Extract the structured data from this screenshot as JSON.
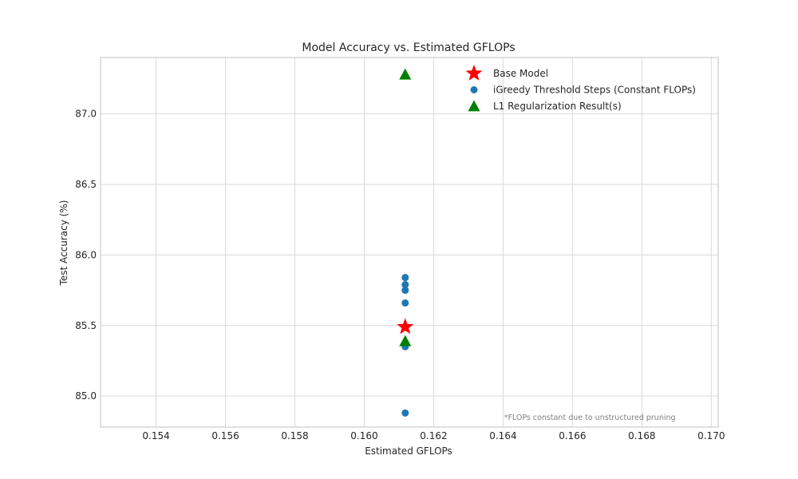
{
  "chart_data": {
    "type": "scatter",
    "title": "Model Accuracy vs. Estimated GFLOPs",
    "xlabel": "Estimated GFLOPs",
    "ylabel": "Test Accuracy (%)",
    "xlim": [
      0.1524,
      0.1702
    ],
    "ylim": [
      84.78,
      87.4
    ],
    "xticks": [
      0.154,
      0.156,
      0.158,
      0.16,
      0.162,
      0.164,
      0.166,
      0.168,
      0.17
    ],
    "xtick_labels": [
      "0.154",
      "0.156",
      "0.158",
      "0.160",
      "0.162",
      "0.164",
      "0.166",
      "0.168",
      "0.170"
    ],
    "yticks": [
      85.0,
      85.5,
      86.0,
      86.5,
      87.0
    ],
    "ytick_labels": [
      "85.0",
      "85.5",
      "86.0",
      "86.5",
      "87.0"
    ],
    "grid": true,
    "legend_position": "top-right",
    "series": [
      {
        "name": "Base Model",
        "marker": "star",
        "color": "#ff0000",
        "points": [
          {
            "x": 0.16118,
            "y": 85.49
          }
        ]
      },
      {
        "name": "iGreedy Threshold Steps (Constant FLOPs)",
        "marker": "circle",
        "color": "#1f77b4",
        "points": [
          {
            "x": 0.16118,
            "y": 85.84
          },
          {
            "x": 0.16118,
            "y": 85.79
          },
          {
            "x": 0.16118,
            "y": 85.75
          },
          {
            "x": 0.16118,
            "y": 85.66
          },
          {
            "x": 0.16118,
            "y": 85.35
          },
          {
            "x": 0.16118,
            "y": 84.88
          }
        ]
      },
      {
        "name": "L1 Regularization Result(s)",
        "marker": "triangle",
        "color": "#008000",
        "points": [
          {
            "x": 0.16118,
            "y": 87.28
          },
          {
            "x": 0.16118,
            "y": 85.39
          }
        ]
      }
    ],
    "annotations": [
      {
        "text": "*FLOPs constant due to unstructured pruning",
        "x": 0.16403,
        "y": 84.78
      }
    ]
  }
}
